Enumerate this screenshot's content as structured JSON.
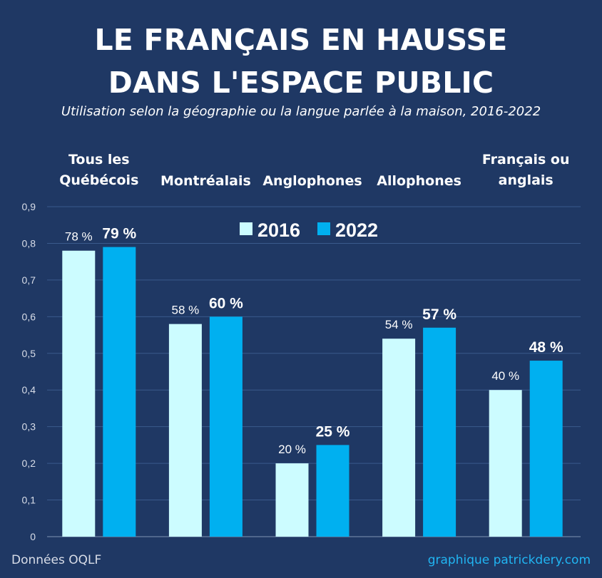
{
  "title_line1": "LE FRANÇAIS EN HAUSSE",
  "title_line2": "DANS L'ESPACE PUBLIC",
  "subtitle": "Utilisation selon la géographie ou la langue parlée à la maison, 2016-2022",
  "source": "Données OQLF",
  "credit": "graphique patrickdery.com",
  "colors": {
    "background": "#1f3864",
    "series_2016": "#ccfcff",
    "series_2022": "#00b0f0",
    "gridline": "#3a5a8c"
  },
  "chart_data": {
    "type": "bar",
    "categories": [
      "Tous les Québécois",
      "Montréalais",
      "Anglophones",
      "Allophones",
      "Français ou anglais"
    ],
    "category_lines": [
      [
        "Tous les",
        "Québécois"
      ],
      [
        "Montréalais"
      ],
      [
        "Anglophones"
      ],
      [
        "Allophones"
      ],
      [
        "Français ou",
        "anglais"
      ]
    ],
    "series": [
      {
        "name": "2016",
        "values": [
          0.78,
          0.58,
          0.2,
          0.54,
          0.4
        ],
        "labels": [
          "78 %",
          "58 %",
          "20 %",
          "54 %",
          "40 %"
        ]
      },
      {
        "name": "2022",
        "values": [
          0.79,
          0.6,
          0.25,
          0.57,
          0.48
        ],
        "labels": [
          "79 %",
          "60 %",
          "25 %",
          "57 %",
          "48 %"
        ]
      }
    ],
    "ylim": [
      0,
      0.9
    ],
    "yticks": [
      "0",
      "0,1",
      "0,2",
      "0,3",
      "0,4",
      "0,5",
      "0,6",
      "0,7",
      "0,8",
      "0,9"
    ],
    "grid": true,
    "legend": "top-center"
  }
}
